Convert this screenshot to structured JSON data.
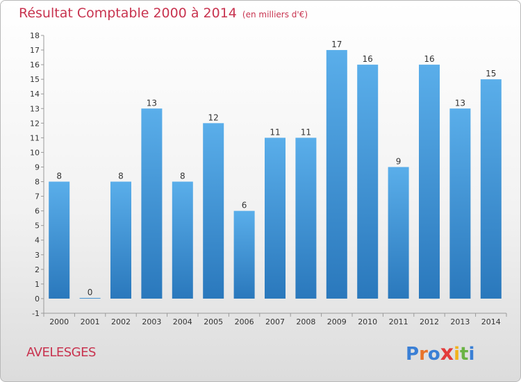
{
  "header": {
    "title": "Résultat Comptable 2000 à 2014",
    "unit": "(en milliers d'€)"
  },
  "commune": "AVELESGES",
  "logo": {
    "letters": [
      "P",
      "r",
      "o",
      "x",
      "i",
      "t",
      "i"
    ],
    "colors": [
      "#3a7fd5",
      "#e8732a",
      "#3a7fd5",
      "#e33b3b",
      "#f2b21c",
      "#6ab344",
      "#3a7fd5"
    ]
  },
  "colors": {
    "bar_top": "#5aaeea",
    "bar_bottom": "#2a78bc",
    "title": "#c8334f"
  },
  "chart_data": {
    "type": "bar",
    "title": "Résultat Comptable 2000 à 2014",
    "subtitle": "(en milliers d'€)",
    "categories": [
      "2000",
      "2001",
      "2002",
      "2003",
      "2004",
      "2005",
      "2006",
      "2007",
      "2008",
      "2009",
      "2010",
      "2011",
      "2012",
      "2013",
      "2014"
    ],
    "values": [
      8,
      0,
      8,
      13,
      8,
      12,
      6,
      11,
      11,
      17,
      16,
      9,
      16,
      13,
      15
    ],
    "value_labels": [
      "8",
      "0",
      "8",
      "13",
      "8",
      "12",
      "6",
      "11",
      "11",
      "17",
      "16",
      "9",
      "16",
      "13",
      "15"
    ],
    "yticks": [
      "-1",
      "0",
      "1",
      "2",
      "3",
      "4",
      "5",
      "6",
      "7",
      "8",
      "9",
      "10",
      "11",
      "12",
      "13",
      "14",
      "15",
      "16",
      "17",
      "18"
    ],
    "ylim": [
      -1,
      18
    ],
    "xlabel": "",
    "ylabel": "",
    "grid": false
  }
}
